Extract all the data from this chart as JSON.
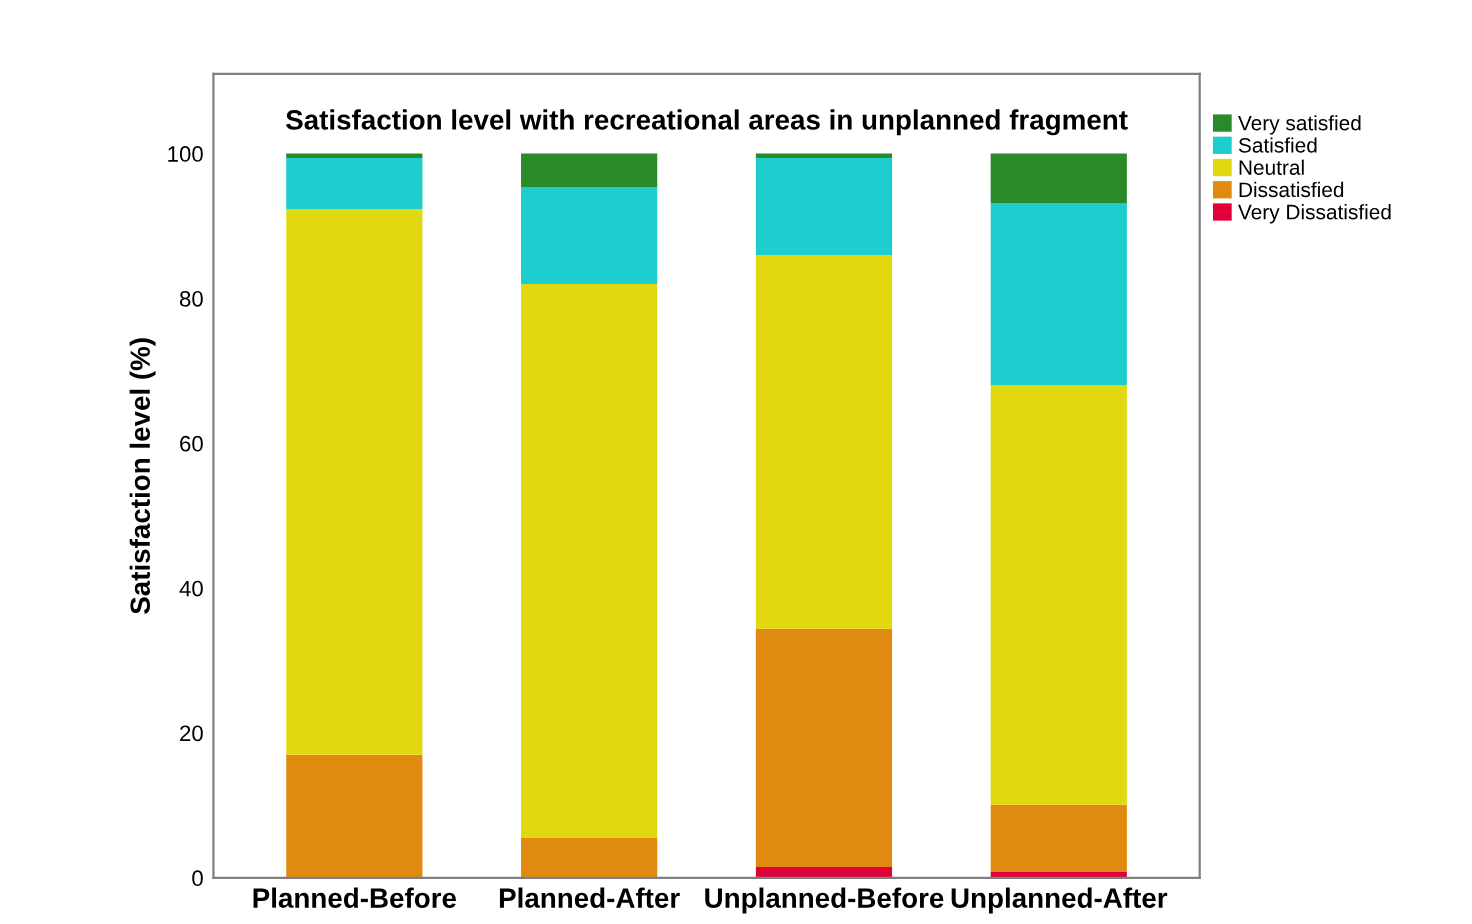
{
  "chart_data": {
    "type": "bar",
    "stacked": true,
    "title": "Satisfaction level with recreational areas in unplanned fragment",
    "ylabel": "Satisfaction level (%)",
    "categories": [
      "Planned-Before",
      "Planned-After",
      "Unplanned-Before",
      "Unplanned-After"
    ],
    "series": [
      {
        "name": "Very Dissatisfied",
        "color": "#e0003c",
        "values": [
          0,
          0,
          1.5,
          0.8
        ]
      },
      {
        "name": "Dissatisfied",
        "color": "#e08a10",
        "values": [
          17,
          5.5,
          32.9,
          9.3
        ]
      },
      {
        "name": "Neutral",
        "color": "#e2d810",
        "values": [
          75.3,
          76.5,
          51.6,
          57.9
        ]
      },
      {
        "name": "Satisfied",
        "color": "#1ecdcd",
        "values": [
          7.1,
          13.3,
          13.4,
          25.1
        ]
      },
      {
        "name": "Very satisfied",
        "color": "#2a8a2a",
        "values": [
          0.6,
          4.7,
          0.6,
          6.9
        ]
      }
    ],
    "ylim": [
      0,
      111
    ],
    "yticks": [
      0,
      20,
      40,
      60,
      80,
      100
    ],
    "grid": false,
    "legend": "top right"
  }
}
